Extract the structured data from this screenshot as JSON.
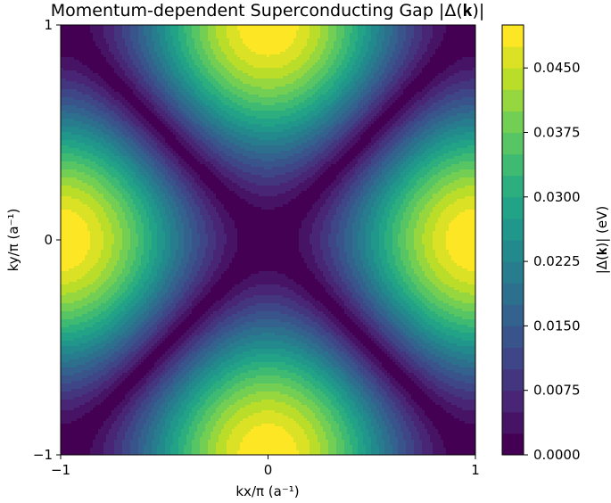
{
  "chart_data": {
    "type": "heatmap",
    "subtype": "filled-contour",
    "title": "Momentum-dependent Superconducting Gap |Δ(𝐤)|",
    "xlabel": "kx/π (a⁻¹)",
    "ylabel": "ky/π (a⁻¹)",
    "xlim": [
      -1,
      1
    ],
    "ylim": [
      -1,
      1
    ],
    "xticks": [
      -1,
      0,
      1
    ],
    "yticks": [
      -1,
      0,
      1
    ],
    "xtick_labels": [
      "−1",
      "0",
      "1"
    ],
    "ytick_labels": [
      "−1",
      "0",
      "1"
    ],
    "function": "|Δ0/2·(cos(πkx) − cos(πky))|",
    "delta0": 0.05,
    "zlim": [
      0,
      0.05
    ],
    "levels": 20,
    "colorbar": {
      "label": "|Δ(𝐤)| (eV)",
      "ticks": [
        0.0,
        0.0075,
        0.015,
        0.0225,
        0.03,
        0.0375,
        0.045
      ],
      "tick_labels": [
        "0.0000",
        "0.0075",
        "0.0150",
        "0.0225",
        "0.0300",
        "0.0375",
        "0.0450"
      ]
    },
    "colormap": "viridis",
    "grid": false
  }
}
